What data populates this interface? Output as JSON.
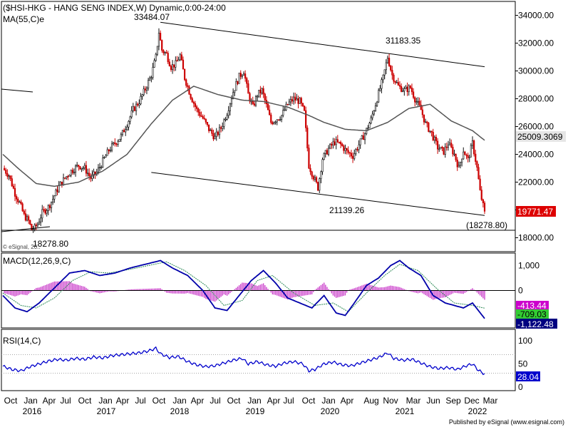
{
  "chart_data": {
    "type": "candlestick",
    "title": "($HSI-HKG - HANG SENG INDEX,W) Dynamic,0:00-24:00",
    "symbol": "$HSI-HKG",
    "timeframe": "W",
    "overlay_label": "MA(55,C)e",
    "x_axis": {
      "months": [
        "Oct",
        "Jan",
        "Apr",
        "Jul",
        "Oct",
        "Jan",
        "Apr",
        "Jul",
        "Oct",
        "Jan",
        "Apr",
        "Jul",
        "Oct",
        "Jan",
        "Apr",
        "Jul",
        "Oct",
        "Jan",
        "Apr",
        "Aug",
        "Nov",
        "Mar",
        "Jun",
        "Sep",
        "Dec",
        "Mar"
      ],
      "years": [
        "2016",
        "2017",
        "2018",
        "2019",
        "2020",
        "2021",
        "2022"
      ]
    },
    "price_panel": {
      "ylim": [
        17000,
        35000
      ],
      "yticks": [
        "34000.00",
        "32000.00",
        "30000.00",
        "28000.00",
        "26000.00",
        "24000.00",
        "22000.00",
        "20000.00",
        "18000.00"
      ],
      "annotations": [
        {
          "text": "33484.07"
        },
        {
          "text": "31183.35"
        },
        {
          "text": "21139.26"
        },
        {
          "text": "18278.80"
        },
        {
          "text": "(18278.80)"
        }
      ],
      "ma_last": "25009.3069",
      "last_price": "19771.47",
      "copyright": "© eSignal, 20..",
      "close_points": [
        [
          0,
          23000
        ],
        [
          4,
          22500
        ],
        [
          8,
          21200
        ],
        [
          11,
          20500
        ],
        [
          14,
          19600
        ],
        [
          17,
          19200
        ],
        [
          19,
          18600
        ],
        [
          21,
          18700
        ],
        [
          23,
          19000
        ],
        [
          26,
          19800
        ],
        [
          30,
          20200
        ],
        [
          33,
          20800
        ],
        [
          37,
          21700
        ],
        [
          41,
          22300
        ],
        [
          45,
          22800
        ],
        [
          50,
          23200
        ],
        [
          54,
          23000
        ],
        [
          58,
          22300
        ],
        [
          62,
          22700
        ],
        [
          66,
          23500
        ],
        [
          70,
          24300
        ],
        [
          74,
          24800
        ],
        [
          78,
          25300
        ],
        [
          82,
          26200
        ],
        [
          86,
          27200
        ],
        [
          90,
          27800
        ],
        [
          94,
          28700
        ],
        [
          98,
          29700
        ],
        [
          101,
          31000
        ],
        [
          103,
          32800
        ],
        [
          105,
          31500
        ],
        [
          108,
          31200
        ],
        [
          111,
          30300
        ],
        [
          114,
          30500
        ],
        [
          117,
          31100
        ],
        [
          120,
          29500
        ],
        [
          124,
          28200
        ],
        [
          128,
          27200
        ],
        [
          132,
          26600
        ],
        [
          136,
          25800
        ],
        [
          140,
          25200
        ],
        [
          144,
          25900
        ],
        [
          148,
          27000
        ],
        [
          152,
          28500
        ],
        [
          156,
          29600
        ],
        [
          159,
          30000
        ],
        [
          162,
          28300
        ],
        [
          165,
          27400
        ],
        [
          168,
          28300
        ],
        [
          171,
          28600
        ],
        [
          174,
          27500
        ],
        [
          177,
          26300
        ],
        [
          180,
          26500
        ],
        [
          184,
          26800
        ],
        [
          188,
          27600
        ],
        [
          192,
          28000
        ],
        [
          196,
          27800
        ],
        [
          199,
          27000
        ],
        [
          202,
          23200
        ],
        [
          205,
          22400
        ],
        [
          208,
          21600
        ],
        [
          211,
          23700
        ],
        [
          215,
          24400
        ],
        [
          219,
          24900
        ],
        [
          223,
          24700
        ],
        [
          227,
          24200
        ],
        [
          231,
          23900
        ],
        [
          235,
          24700
        ],
        [
          239,
          25500
        ],
        [
          243,
          26500
        ],
        [
          247,
          28000
        ],
        [
          251,
          29500
        ],
        [
          254,
          31000
        ],
        [
          257,
          29700
        ],
        [
          261,
          28900
        ],
        [
          265,
          28600
        ],
        [
          269,
          28800
        ],
        [
          272,
          28000
        ],
        [
          276,
          27200
        ],
        [
          279,
          26200
        ],
        [
          283,
          25500
        ],
        [
          287,
          24500
        ],
        [
          291,
          24200
        ],
        [
          294,
          24800
        ],
        [
          298,
          24000
        ],
        [
          301,
          23000
        ],
        [
          304,
          24300
        ],
        [
          307,
          23600
        ],
        [
          310,
          24800
        ],
        [
          313,
          23000
        ],
        [
          315,
          21300
        ],
        [
          317,
          20300
        ],
        [
          318,
          19771
        ]
      ],
      "ma_points": [
        [
          0,
          24000
        ],
        [
          10,
          23000
        ],
        [
          22,
          21900
        ],
        [
          34,
          21700
        ],
        [
          50,
          22000
        ],
        [
          66,
          22800
        ],
        [
          82,
          24000
        ],
        [
          98,
          26200
        ],
        [
          112,
          27900
        ],
        [
          126,
          28900
        ],
        [
          142,
          28300
        ],
        [
          158,
          27900
        ],
        [
          172,
          27800
        ],
        [
          188,
          27400
        ],
        [
          202,
          26800
        ],
        [
          212,
          26300
        ],
        [
          226,
          25800
        ],
        [
          240,
          25700
        ],
        [
          254,
          26300
        ],
        [
          268,
          27300
        ],
        [
          282,
          27600
        ],
        [
          296,
          26400
        ],
        [
          310,
          25700
        ],
        [
          318,
          25009
        ]
      ]
    },
    "macd_panel": {
      "label": "MACD(12,26,9,C)",
      "ylim": [
        -1500,
        1500
      ],
      "yticks": [
        "1,000",
        "0"
      ],
      "values": {
        "histogram": "-413.44",
        "signal": "-709.03",
        "macd": "-1,122.48"
      },
      "macd_points": [
        [
          0,
          -200
        ],
        [
          8,
          -700
        ],
        [
          16,
          -850
        ],
        [
          24,
          -500
        ],
        [
          34,
          100
        ],
        [
          44,
          700
        ],
        [
          54,
          800
        ],
        [
          64,
          600
        ],
        [
          74,
          700
        ],
        [
          84,
          900
        ],
        [
          94,
          1050
        ],
        [
          104,
          1200
        ],
        [
          112,
          900
        ],
        [
          122,
          600
        ],
        [
          132,
          0
        ],
        [
          140,
          -700
        ],
        [
          148,
          -800
        ],
        [
          156,
          -200
        ],
        [
          164,
          400
        ],
        [
          172,
          800
        ],
        [
          180,
          300
        ],
        [
          188,
          -300
        ],
        [
          196,
          -500
        ],
        [
          204,
          -700
        ],
        [
          212,
          -200
        ],
        [
          220,
          -900
        ],
        [
          226,
          -1000
        ],
        [
          232,
          -500
        ],
        [
          240,
          200
        ],
        [
          248,
          500
        ],
        [
          256,
          1000
        ],
        [
          262,
          1200
        ],
        [
          268,
          900
        ],
        [
          276,
          600
        ],
        [
          284,
          -200
        ],
        [
          292,
          -500
        ],
        [
          298,
          -600
        ],
        [
          304,
          -700
        ],
        [
          310,
          -500
        ],
        [
          318,
          -1122
        ]
      ],
      "signal_points": [
        [
          0,
          -100
        ],
        [
          12,
          -600
        ],
        [
          22,
          -700
        ],
        [
          34,
          -300
        ],
        [
          46,
          400
        ],
        [
          58,
          750
        ],
        [
          70,
          700
        ],
        [
          84,
          850
        ],
        [
          96,
          1000
        ],
        [
          108,
          1150
        ],
        [
          120,
          800
        ],
        [
          134,
          200
        ],
        [
          146,
          -600
        ],
        [
          158,
          -400
        ],
        [
          168,
          400
        ],
        [
          178,
          600
        ],
        [
          192,
          -100
        ],
        [
          206,
          -600
        ],
        [
          218,
          -500
        ],
        [
          228,
          -850
        ],
        [
          240,
          -100
        ],
        [
          252,
          600
        ],
        [
          262,
          1050
        ],
        [
          274,
          800
        ],
        [
          286,
          100
        ],
        [
          298,
          -500
        ],
        [
          310,
          -600
        ],
        [
          318,
          -709
        ]
      ]
    },
    "rsi_panel": {
      "label": "RSI(14,C)",
      "ylim": [
        0,
        100
      ],
      "yticks": [
        "100",
        "50",
        "0"
      ],
      "value": "28.04",
      "rsi_points": [
        [
          0,
          45
        ],
        [
          6,
          38
        ],
        [
          12,
          35
        ],
        [
          18,
          44
        ],
        [
          24,
          50
        ],
        [
          30,
          56
        ],
        [
          36,
          60
        ],
        [
          42,
          58
        ],
        [
          48,
          62
        ],
        [
          54,
          60
        ],
        [
          60,
          65
        ],
        [
          66,
          63
        ],
        [
          72,
          68
        ],
        [
          78,
          70
        ],
        [
          84,
          72
        ],
        [
          90,
          74
        ],
        [
          96,
          78
        ],
        [
          101,
          84
        ],
        [
          104,
          72
        ],
        [
          110,
          64
        ],
        [
          116,
          66
        ],
        [
          122,
          55
        ],
        [
          128,
          48
        ],
        [
          134,
          44
        ],
        [
          140,
          46
        ],
        [
          146,
          52
        ],
        [
          152,
          58
        ],
        [
          158,
          62
        ],
        [
          162,
          50
        ],
        [
          168,
          55
        ],
        [
          174,
          48
        ],
        [
          180,
          45
        ],
        [
          186,
          52
        ],
        [
          192,
          55
        ],
        [
          198,
          50
        ],
        [
          202,
          35
        ],
        [
          206,
          38
        ],
        [
          212,
          50
        ],
        [
          218,
          54
        ],
        [
          224,
          48
        ],
        [
          230,
          46
        ],
        [
          236,
          52
        ],
        [
          242,
          58
        ],
        [
          248,
          64
        ],
        [
          254,
          74
        ],
        [
          258,
          62
        ],
        [
          264,
          58
        ],
        [
          270,
          60
        ],
        [
          276,
          52
        ],
        [
          282,
          44
        ],
        [
          288,
          40
        ],
        [
          294,
          42
        ],
        [
          300,
          38
        ],
        [
          306,
          46
        ],
        [
          310,
          50
        ],
        [
          314,
          36
        ],
        [
          318,
          28
        ]
      ]
    },
    "footer": "Published by eSignal (www.esignal.com)",
    "colors": {
      "candle_red": "#cc0000",
      "candle_dark": "#111111",
      "ma": "#555555",
      "macd_line": "#0000aa",
      "signal_line": "#2e8b57",
      "histogram": "#cc44cc",
      "rsi_line": "#0000cc",
      "badge_price": "#dd0000",
      "badge_ma": "#e6e6e6",
      "badge_macd": "#000080",
      "badge_hist": "#cc00cc",
      "badge_signal": "#33cc33",
      "badge_rsi": "#0000cc"
    }
  }
}
